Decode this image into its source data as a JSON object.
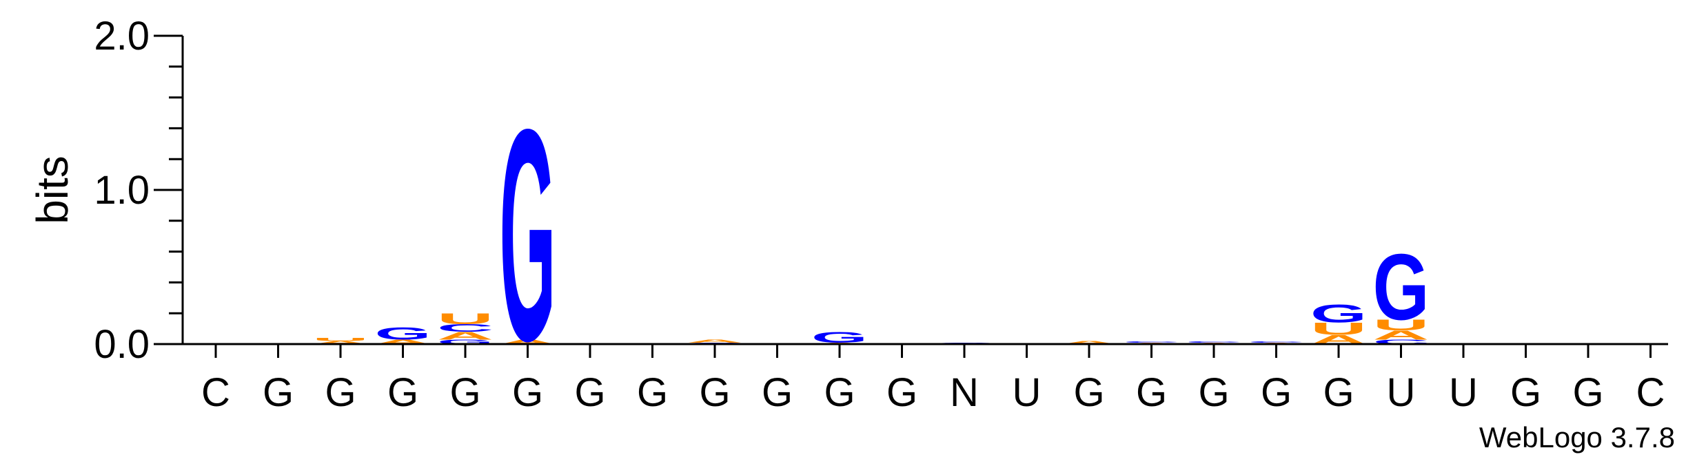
{
  "chart_data": {
    "type": "sequence-logo",
    "ylabel": "bits",
    "ylim": [
      0,
      2.0
    ],
    "y_ticks": [
      "0.0",
      "1.0",
      "2.0"
    ],
    "positions": [
      "C",
      "G",
      "G",
      "G",
      "G",
      "G",
      "G",
      "G",
      "G",
      "G",
      "G",
      "G",
      "N",
      "U",
      "G",
      "G",
      "G",
      "G",
      "G",
      "U",
      "U",
      "G",
      "G",
      "C"
    ],
    "colors": {
      "G": "#0000ff",
      "U": "#ff8c00",
      "A": "#ff8c00",
      "C": "#0000ff"
    },
    "stacks": [
      [],
      [],
      [
        {
          "letter": "A",
          "bits": 0.02
        },
        {
          "letter": "U",
          "bits": 0.02
        }
      ],
      [
        {
          "letter": "A",
          "bits": 0.03
        },
        {
          "letter": "G",
          "bits": 0.08
        }
      ],
      [
        {
          "letter": "A",
          "bits": 0.05
        },
        {
          "letter": "C",
          "bits": 0.05
        },
        {
          "letter": "G",
          "bits": 0.03
        },
        {
          "letter": "U",
          "bits": 0.07
        }
      ],
      [
        {
          "letter": "A",
          "bits": 0.03
        },
        {
          "letter": "G",
          "bits": 1.41
        }
      ],
      [],
      [],
      [
        {
          "letter": "A",
          "bits": 0.02
        },
        {
          "letter": "C",
          "bits": 0.01
        }
      ],
      [],
      [
        {
          "letter": "A",
          "bits": 0.01
        },
        {
          "letter": "G",
          "bits": 0.07
        }
      ],
      [],
      [
        {
          "letter": "C",
          "bits": 0.01
        }
      ],
      [],
      [
        {
          "letter": "A",
          "bits": 0.02
        }
      ],
      [
        {
          "letter": "A",
          "bits": 0.01
        },
        {
          "letter": "C",
          "bits": 0.01
        }
      ],
      [
        {
          "letter": "A",
          "bits": 0.01
        },
        {
          "letter": "C",
          "bits": 0.01
        }
      ],
      [
        {
          "letter": "A",
          "bits": 0.01
        },
        {
          "letter": "C",
          "bits": 0.01
        }
      ],
      [
        {
          "letter": "A",
          "bits": 0.06
        },
        {
          "letter": "U",
          "bits": 0.08
        },
        {
          "letter": "G",
          "bits": 0.12
        }
      ],
      [
        {
          "letter": "C",
          "bits": 0.03
        },
        {
          "letter": "U",
          "bits": 0.07
        },
        {
          "letter": "A",
          "bits": 0.06
        },
        {
          "letter": "G",
          "bits": 0.44
        }
      ],
      [],
      [],
      [],
      []
    ],
    "credit": "WebLogo 3.7.8"
  }
}
